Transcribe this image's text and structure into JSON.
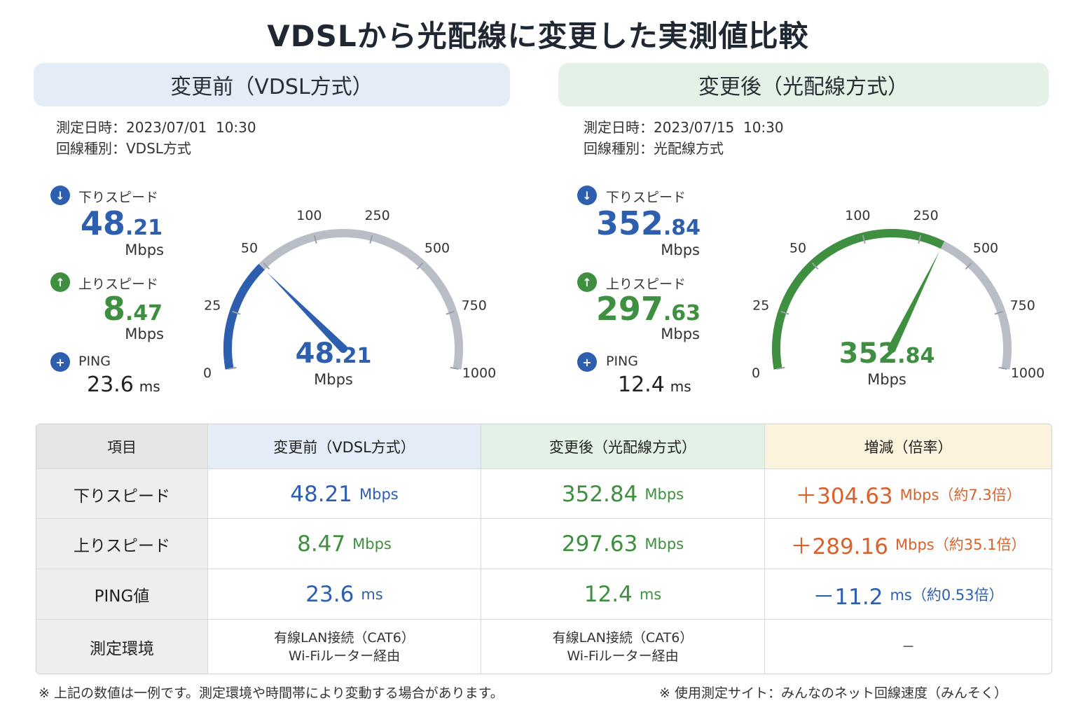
{
  "title": "VDSLから光配線に変更した実測値比較",
  "before": {
    "header": "変更前（VDSL方式）",
    "date_line": "測定日時：2023/07/01  10:30",
    "type_line": "回線種別：VDSL方式",
    "download_label": "下りスピード",
    "download_int": "48",
    "download_dec": ".21",
    "download_unit": "Mbps",
    "upload_label": "上りスピード",
    "upload_int": "8",
    "upload_dec": ".47",
    "upload_unit": "Mbps",
    "ping_label": "PING",
    "ping_value": "23.6",
    "ping_unit": "ms",
    "gauge_int": "48",
    "gauge_dec": ".21",
    "gauge_unit": "Mbps",
    "gauge_value": 48.21
  },
  "after": {
    "header": "変更後（光配線方式）",
    "date_line": "測定日時：2023/07/15  10:30",
    "type_line": "回線種別：光配線方式",
    "download_label": "下りスピード",
    "download_int": "352",
    "download_dec": ".84",
    "download_unit": "Mbps",
    "upload_label": "上りスピード",
    "upload_int": "297",
    "upload_dec": ".63",
    "upload_unit": "Mbps",
    "ping_label": "PING",
    "ping_value": "12.4",
    "ping_unit": "ms",
    "gauge_int": "352",
    "gauge_dec": ".84",
    "gauge_unit": "Mbps",
    "gauge_value": 352.84
  },
  "gauge_ticks": [
    "0",
    "25",
    "50",
    "100",
    "250",
    "500",
    "750",
    "1000"
  ],
  "colors": {
    "blue": "#2d5fae",
    "green": "#3e8f3f",
    "orange": "#d9622b",
    "track": "#b9bec6"
  },
  "icons": {
    "download": "download-arrow-icon",
    "upload": "upload-arrow-icon",
    "ping": "ping-icon"
  },
  "table": {
    "headers": [
      "項目",
      "変更前（VDSL方式）",
      "変更後（光配線方式）",
      "増減（倍率）"
    ],
    "rows": [
      {
        "label": "下りスピード",
        "before": "48.21",
        "before_unit": "Mbps",
        "after": "352.84",
        "after_unit": "Mbps",
        "diff": "＋304.63",
        "diff_unit": "Mbps（約7.3倍）"
      },
      {
        "label": "上りスピード",
        "before": "8.47",
        "before_unit": "Mbps",
        "after": "297.63",
        "after_unit": "Mbps",
        "diff": "＋289.16",
        "diff_unit": "Mbps（約35.1倍）"
      },
      {
        "label": "PING値",
        "before": "23.6",
        "before_unit": "ms",
        "after": "12.4",
        "after_unit": "ms",
        "diff": "－11.2",
        "diff_unit": "ms（約0.53倍）"
      }
    ],
    "env_label": "測定環境",
    "env_before_1": "有線LAN接続（CAT6）",
    "env_before_2": "Wi-Fiルーター経由",
    "env_after_1": "有線LAN接続（CAT6）",
    "env_after_2": "Wi-Fiルーター経由",
    "env_diff": "－"
  },
  "footnote_left": "※ 上記の数値は一例です。測定環境や時間帯により変動する場合があります。",
  "footnote_right": "※ 使用測定サイト：みんなのネット回線速度（みんそく）"
}
